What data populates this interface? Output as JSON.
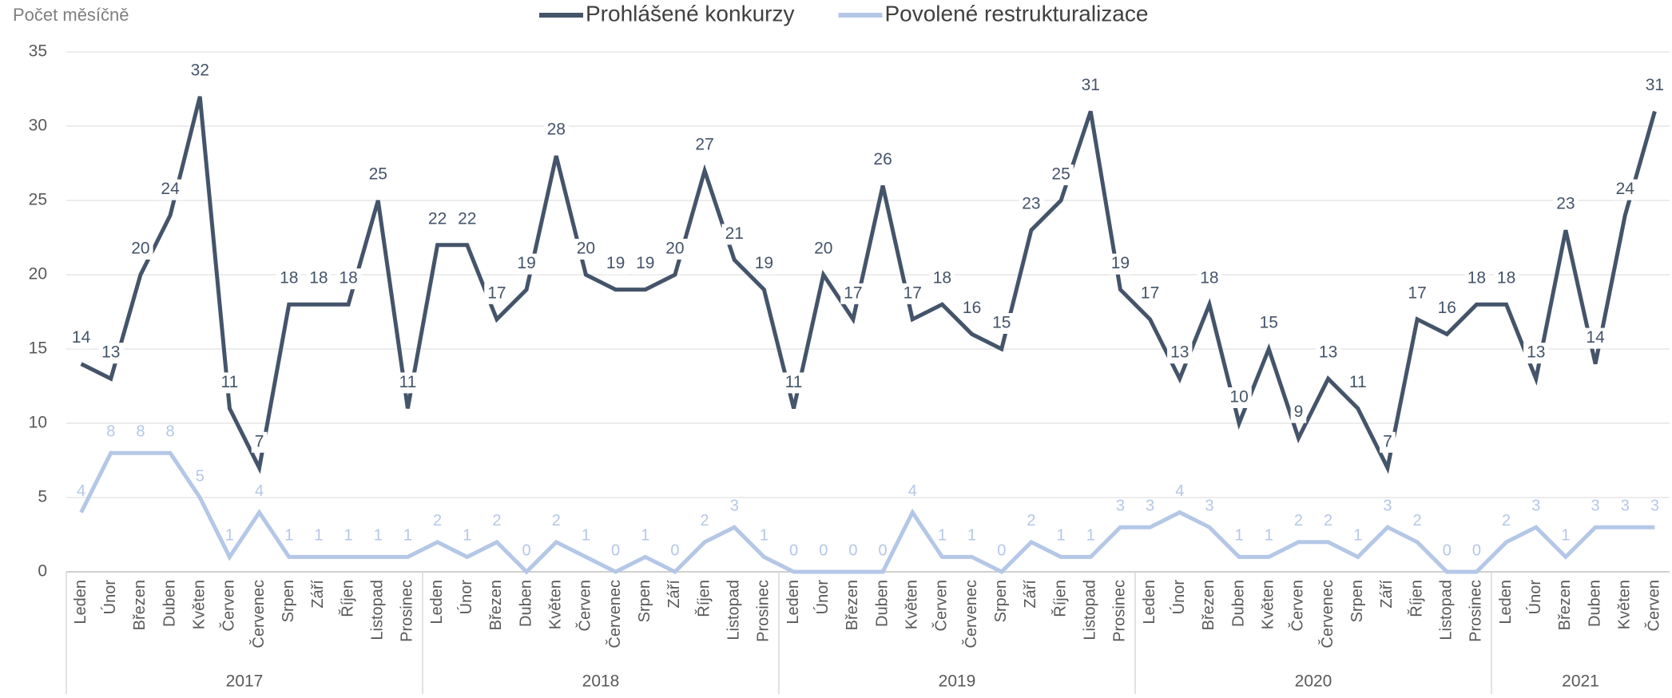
{
  "chart_data": {
    "type": "line",
    "y_axis_title": "Počet měsíčně",
    "groups": [
      {
        "label": "2017",
        "categories": [
          "Leden",
          "Únor",
          "Březen",
          "Duben",
          "Květen",
          "Červen",
          "Červenec",
          "Srpen",
          "Září",
          "Říjen",
          "Listopad",
          "Prosinec"
        ]
      },
      {
        "label": "2018",
        "categories": [
          "Leden",
          "Únor",
          "Březen",
          "Duben",
          "Květen",
          "Červen",
          "Červenec",
          "Srpen",
          "Září",
          "Říjen",
          "Listopad",
          "Prosinec"
        ]
      },
      {
        "label": "2019",
        "categories": [
          "Leden",
          "Únor",
          "Březen",
          "Duben",
          "Květen",
          "Červen",
          "Červenec",
          "Srpen",
          "Září",
          "Říjen",
          "Listopad",
          "Prosinec"
        ]
      },
      {
        "label": "2020",
        "categories": [
          "Leden",
          "Únor",
          "Březen",
          "Duben",
          "Květen",
          "Červen",
          "Červenec",
          "Srpen",
          "Září",
          "Říjen",
          "Listopad",
          "Prosinec"
        ]
      },
      {
        "label": "2021",
        "categories": [
          "Leden",
          "Únor",
          "Březen",
          "Duben",
          "Květen",
          "Červen"
        ]
      }
    ],
    "series": [
      {
        "name": "Prohlášené konkurzy",
        "color": "#44546a",
        "values": [
          14,
          13,
          20,
          24,
          32,
          11,
          7,
          18,
          18,
          18,
          25,
          11,
          22,
          22,
          17,
          19,
          28,
          20,
          19,
          19,
          20,
          27,
          21,
          19,
          11,
          20,
          17,
          26,
          17,
          18,
          16,
          15,
          23,
          25,
          31,
          19,
          17,
          13,
          18,
          10,
          15,
          9,
          13,
          11,
          7,
          17,
          16,
          18,
          18,
          13,
          23,
          14,
          24,
          31
        ]
      },
      {
        "name": "Povolené restrukturalizace",
        "color": "#b4c7e7",
        "values": [
          4,
          8,
          8,
          8,
          5,
          1,
          4,
          1,
          1,
          1,
          1,
          1,
          2,
          1,
          2,
          0,
          2,
          1,
          0,
          1,
          0,
          2,
          3,
          1,
          0,
          0,
          0,
          0,
          4,
          1,
          1,
          0,
          2,
          1,
          1,
          3,
          3,
          4,
          3,
          1,
          1,
          2,
          2,
          1,
          3,
          2,
          0,
          0,
          2,
          3,
          1,
          3,
          3,
          3
        ]
      }
    ],
    "ylim": [
      0,
      35
    ],
    "yticks": [
      0,
      5,
      10,
      15,
      20,
      25,
      30,
      35
    ],
    "grid": true,
    "legend": "top"
  }
}
